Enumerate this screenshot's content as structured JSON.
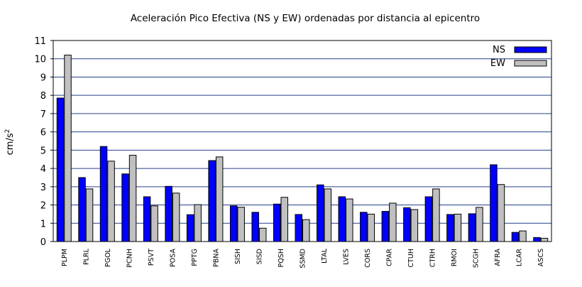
{
  "chart_data": {
    "type": "bar",
    "title": "Aceleración Pico Efectiva (NS y EW) ordenadas por distancia al epicentro",
    "ylabel": "cm/s²",
    "ylabel_base": "cm/s",
    "ylabel_sup": "2",
    "xlabel": "",
    "ylim": [
      0,
      11
    ],
    "yticks": [
      "0",
      "1",
      "2",
      "3",
      "4",
      "5",
      "6",
      "7",
      "8",
      "9",
      "10",
      "11"
    ],
    "grid": true,
    "legend_position": "top-right",
    "categories": [
      "PLPM",
      "PLRL",
      "PGOL",
      "PCNH",
      "PSVT",
      "POSA",
      "PPTG",
      "PBNA",
      "SISH",
      "SISD",
      "PQSH",
      "SSMD",
      "LTAL",
      "LVES",
      "CORS",
      "CPAR",
      "CTUH",
      "CTRH",
      "RMOI",
      "SCGH",
      "AFRA",
      "LCAR",
      "ASCS"
    ],
    "series": [
      {
        "name": "NS",
        "color": "#0000ff",
        "values": [
          7.85,
          3.5,
          5.2,
          3.7,
          2.45,
          3.02,
          1.47,
          4.43,
          1.95,
          1.6,
          2.05,
          1.48,
          3.1,
          2.45,
          1.6,
          1.65,
          1.85,
          2.45,
          1.48,
          1.52,
          4.2,
          0.5,
          0.22
        ]
      },
      {
        "name": "EW",
        "color": "#c0c0c0",
        "values": [
          10.2,
          2.88,
          4.4,
          4.72,
          1.95,
          2.65,
          2.02,
          4.63,
          1.88,
          0.73,
          2.42,
          1.2,
          2.88,
          2.33,
          1.5,
          2.1,
          1.75,
          2.88,
          1.5,
          1.87,
          3.12,
          0.58,
          0.18
        ]
      }
    ]
  }
}
